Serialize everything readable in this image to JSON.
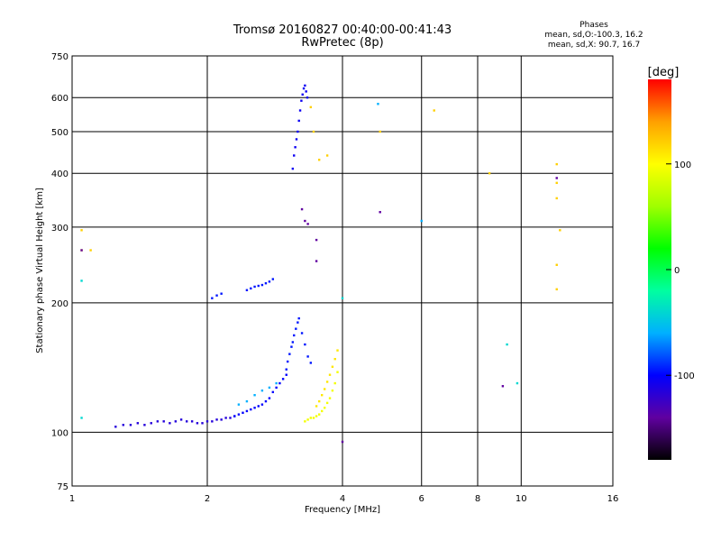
{
  "chart_data": {
    "type": "scatter",
    "title": "Tromsø 20160827 00:40:00-00:41:43",
    "subtitle": "RwPretec (8p)",
    "xlabel": "Frequency [MHz]",
    "ylabel": "Stationary phase Virtual Height [km]",
    "x_scale": "log",
    "y_scale": "log",
    "xlim": [
      1,
      16
    ],
    "ylim": [
      75,
      750
    ],
    "x_ticks": [
      1,
      2,
      4,
      6,
      8,
      10,
      16
    ],
    "x_tick_labels": [
      "1",
      "2",
      "4",
      "6",
      "8",
      "10",
      "16"
    ],
    "y_ticks": [
      75,
      100,
      200,
      300,
      400,
      500,
      600,
      750
    ],
    "y_tick_labels": [
      "75",
      "100",
      "200",
      "300",
      "400",
      "500",
      "600",
      "750"
    ],
    "grid": true,
    "stats": {
      "header": "Phases",
      "line1": "mean, sd,O:-100.3, 16.2",
      "line2": "mean, sd,X:  90.7, 16.7"
    },
    "colorbar": {
      "label": "[deg]",
      "range": [
        -180,
        180
      ],
      "ticks": [
        100,
        0,
        -100
      ],
      "tick_labels": [
        "100",
        "0",
        "-100"
      ],
      "colors": [
        "#000000",
        "#6000a0",
        "#0000ff",
        "#00b0ff",
        "#00ffa0",
        "#00ff00",
        "#a0ff00",
        "#ffff00",
        "#ffa000",
        "#ff0000"
      ]
    },
    "series": [
      {
        "phase": -115,
        "x": [
          1.25,
          1.3,
          1.35,
          1.4,
          1.45,
          1.5,
          1.55,
          1.6,
          1.65,
          1.7,
          1.75,
          1.8,
          1.85,
          1.9,
          1.95,
          2.0,
          2.05,
          2.1,
          2.15,
          2.2,
          2.25,
          2.3
        ],
        "y": [
          103,
          104,
          104,
          105,
          104,
          105,
          106,
          106,
          105,
          106,
          107,
          106,
          106,
          105,
          105,
          106,
          106,
          107,
          107,
          108,
          108,
          109
        ]
      },
      {
        "phase": -100,
        "x": [
          2.3,
          2.35,
          2.4,
          2.45,
          2.5,
          2.55,
          2.6,
          2.65,
          2.7,
          2.75,
          2.8,
          2.85,
          2.9,
          2.95,
          3.0
        ],
        "y": [
          109,
          110,
          111,
          112,
          113,
          114,
          115,
          116,
          118,
          120,
          124,
          127,
          130,
          133,
          136
        ]
      },
      {
        "phase": -95,
        "x": [
          3.0,
          3.02,
          3.05,
          3.08,
          3.1,
          3.12,
          3.15,
          3.18,
          3.2,
          3.25,
          3.3,
          3.35,
          3.4
        ],
        "y": [
          140,
          146,
          152,
          158,
          162,
          168,
          174,
          180,
          184,
          170,
          160,
          150,
          145
        ]
      },
      {
        "phase": -105,
        "x": [
          3.1,
          3.12,
          3.14,
          3.16,
          3.18,
          3.2,
          3.22,
          3.24,
          3.26,
          3.28,
          3.3,
          3.32,
          3.34
        ],
        "y": [
          410,
          440,
          460,
          480,
          500,
          530,
          560,
          590,
          610,
          630,
          640,
          620,
          600
        ]
      },
      {
        "phase": -95,
        "x": [
          2.05,
          2.1,
          2.15,
          2.45,
          2.5,
          2.55,
          2.6,
          2.65,
          2.7,
          2.75,
          2.8
        ],
        "y": [
          205,
          208,
          210,
          214,
          216,
          218,
          219,
          220,
          222,
          224,
          227
        ]
      },
      {
        "phase": 95,
        "x": [
          3.3,
          3.35,
          3.4,
          3.45,
          3.5,
          3.55,
          3.6,
          3.65,
          3.7,
          3.75,
          3.8,
          3.85,
          3.9
        ],
        "y": [
          106,
          107,
          108,
          108,
          109,
          110,
          112,
          114,
          117,
          120,
          125,
          130,
          138
        ]
      },
      {
        "phase": 110,
        "x": [
          3.5,
          3.55,
          3.6,
          3.65,
          3.7,
          3.75,
          3.8,
          3.85,
          3.9
        ],
        "y": [
          115,
          118,
          122,
          126,
          131,
          136,
          142,
          148,
          155
        ]
      },
      {
        "phase": -60,
        "x": [
          2.35,
          2.45,
          2.55,
          2.65,
          2.75,
          2.85,
          4.8,
          6.0
        ],
        "y": [
          116,
          118,
          122,
          125,
          127,
          130,
          580,
          310
        ]
      },
      {
        "phase": 120,
        "x": [
          1.05,
          1.05,
          1.1,
          3.4,
          3.45,
          3.55,
          3.7,
          4.85,
          6.4,
          8.5,
          12.0,
          12.0,
          12.0,
          12.0,
          12.0,
          12.2
        ],
        "y": [
          295,
          265,
          265,
          570,
          500,
          430,
          440,
          500,
          560,
          400,
          420,
          380,
          350,
          245,
          215,
          295
        ]
      },
      {
        "phase": -140,
        "x": [
          1.05,
          3.25,
          3.3,
          3.35,
          3.5,
          3.5,
          4.0,
          4.85,
          9.1,
          12.0
        ],
        "y": [
          265,
          330,
          310,
          305,
          280,
          250,
          95,
          325,
          128,
          390
        ]
      },
      {
        "phase": -40,
        "x": [
          1.05,
          1.05,
          4.0,
          9.3,
          9.8
        ],
        "y": [
          108,
          225,
          205,
          160,
          130
        ]
      }
    ]
  }
}
